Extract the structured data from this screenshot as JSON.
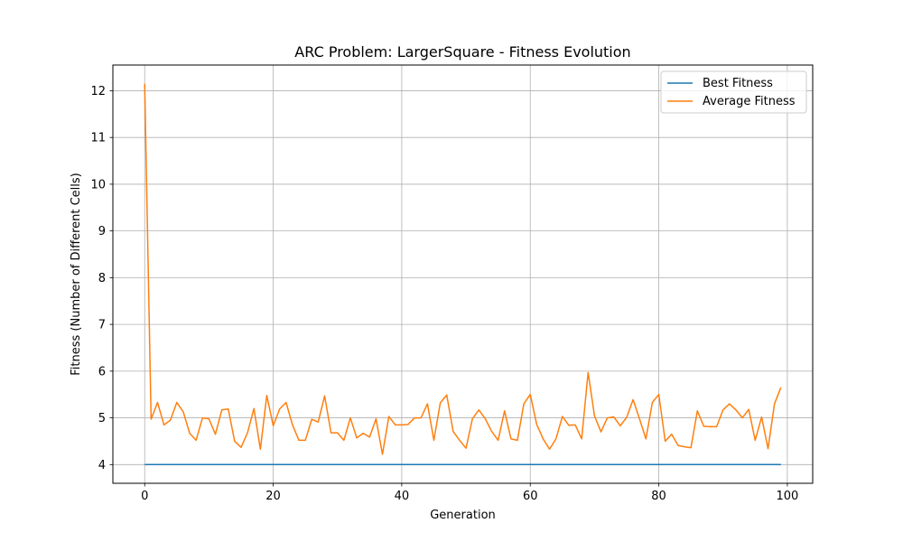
{
  "chart_data": {
    "type": "line",
    "title": "ARC Problem: LargerSquare - Fitness Evolution",
    "xlabel": "Generation",
    "ylabel": "Fitness (Number of Different Cells)",
    "xlim": [
      -4.95,
      103.95
    ],
    "ylim": [
      3.6,
      12.55
    ],
    "xticks": [
      0,
      20,
      40,
      60,
      80,
      100
    ],
    "yticks": [
      4,
      5,
      6,
      7,
      8,
      9,
      10,
      11,
      12
    ],
    "grid": true,
    "legend_position": "top-right",
    "x": [
      0,
      1,
      2,
      3,
      4,
      5,
      6,
      7,
      8,
      9,
      10,
      11,
      12,
      13,
      14,
      15,
      16,
      17,
      18,
      19,
      20,
      21,
      22,
      23,
      24,
      25,
      26,
      27,
      28,
      29,
      30,
      31,
      32,
      33,
      34,
      35,
      36,
      37,
      38,
      39,
      40,
      41,
      42,
      43,
      44,
      45,
      46,
      47,
      48,
      49,
      50,
      51,
      52,
      53,
      54,
      55,
      56,
      57,
      58,
      59,
      60,
      61,
      62,
      63,
      64,
      65,
      66,
      67,
      68,
      69,
      70,
      71,
      72,
      73,
      74,
      75,
      76,
      77,
      78,
      79,
      80,
      81,
      82,
      83,
      84,
      85,
      86,
      87,
      88,
      89,
      90,
      91,
      92,
      93,
      94,
      95,
      96,
      97,
      98,
      99
    ],
    "series": [
      {
        "name": "Best Fitness",
        "color": "#1f77b4",
        "values": [
          4,
          4,
          4,
          4,
          4,
          4,
          4,
          4,
          4,
          4,
          4,
          4,
          4,
          4,
          4,
          4,
          4,
          4,
          4,
          4,
          4,
          4,
          4,
          4,
          4,
          4,
          4,
          4,
          4,
          4,
          4,
          4,
          4,
          4,
          4,
          4,
          4,
          4,
          4,
          4,
          4,
          4,
          4,
          4,
          4,
          4,
          4,
          4,
          4,
          4,
          4,
          4,
          4,
          4,
          4,
          4,
          4,
          4,
          4,
          4,
          4,
          4,
          4,
          4,
          4,
          4,
          4,
          4,
          4,
          4,
          4,
          4,
          4,
          4,
          4,
          4,
          4,
          4,
          4,
          4,
          4,
          4,
          4,
          4,
          4,
          4,
          4,
          4,
          4,
          4,
          4,
          4,
          4,
          4,
          4,
          4,
          4,
          4,
          4,
          4
        ]
      },
      {
        "name": "Average Fitness",
        "color": "#ff7f0e",
        "values": [
          12.15,
          4.97,
          5.33,
          4.85,
          4.95,
          5.33,
          5.13,
          4.67,
          4.52,
          5.0,
          4.98,
          4.65,
          5.17,
          5.19,
          4.5,
          4.37,
          4.68,
          5.2,
          4.33,
          5.48,
          4.83,
          5.19,
          5.33,
          4.85,
          4.52,
          4.52,
          4.97,
          4.91,
          5.47,
          4.68,
          4.68,
          4.52,
          5.0,
          4.57,
          4.67,
          4.59,
          4.98,
          4.22,
          5.03,
          4.85,
          4.85,
          4.86,
          5.0,
          5.0,
          5.3,
          4.52,
          5.32,
          5.49,
          4.71,
          4.52,
          4.35,
          4.98,
          5.17,
          4.98,
          4.71,
          4.52,
          5.15,
          4.55,
          4.52,
          5.3,
          5.5,
          4.86,
          4.55,
          4.33,
          4.55,
          5.03,
          4.84,
          4.85,
          4.55,
          5.97,
          5.04,
          4.7,
          5.0,
          5.02,
          4.83,
          5.01,
          5.39,
          4.98,
          4.55,
          5.33,
          5.5,
          4.5,
          4.65,
          4.41,
          4.38,
          4.36,
          5.15,
          4.82,
          4.81,
          4.81,
          5.17,
          5.3,
          5.17,
          5.0,
          5.18,
          4.52,
          5.02,
          4.34,
          5.3,
          5.65
        ]
      }
    ]
  }
}
